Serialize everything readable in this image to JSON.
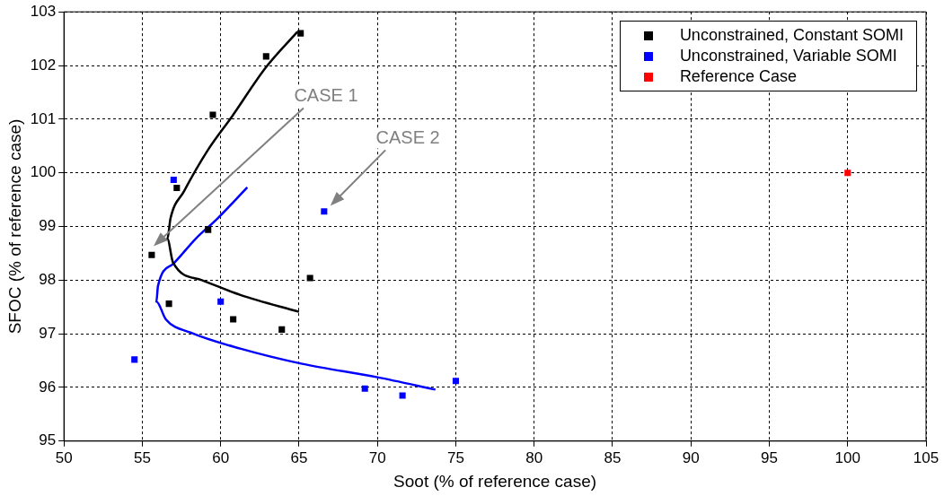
{
  "chart_data": {
    "type": "scatter",
    "xlabel": "Soot (% of reference case)",
    "ylabel": "SFOC (% of reference case)",
    "xlim": [
      50,
      105
    ],
    "xticks": [
      50,
      55,
      60,
      65,
      70,
      75,
      80,
      85,
      90,
      95,
      100,
      105
    ],
    "ylim": [
      95,
      103
    ],
    "yticks": [
      95,
      96,
      97,
      98,
      99,
      100,
      101,
      102,
      103
    ],
    "grid": true,
    "legend": "top right",
    "marker": "square",
    "series": [
      {
        "name": "Unconstrained, Constant SOMI",
        "color": "#000000",
        "x": [
          65.1,
          62.9,
          59.5,
          57.2,
          59.2,
          55.6,
          65.7,
          56.7,
          60.8,
          63.9
        ],
        "values": [
          102.6,
          102.17,
          101.08,
          99.72,
          98.94,
          98.47,
          98.04,
          97.56,
          97.27,
          97.08
        ]
      },
      {
        "name": "Unconstrained, Variable SOMI",
        "color": "#0000ff",
        "x": [
          57.0,
          66.6,
          60.0,
          54.5,
          69.2,
          71.6,
          75.0
        ],
        "values": [
          99.87,
          99.28,
          97.6,
          96.52,
          95.98,
          95.85,
          96.12
        ]
      },
      {
        "name": "Reference Case",
        "color": "#ff0000",
        "x": [
          100
        ],
        "values": [
          100
        ]
      },
      {
        "type": "line",
        "marker": "none",
        "color": "#000000",
        "x": [
          64.9,
          62.9,
          60.7,
          59.2,
          57.65,
          56.8,
          56.6,
          56.96,
          58.8,
          61.3,
          65.0
        ],
        "values": [
          102.63,
          101.97,
          101.04,
          100.43,
          99.65,
          99.15,
          98.77,
          98.33,
          98.0,
          97.72,
          97.41
        ]
      },
      {
        "type": "line",
        "marker": "none",
        "color": "#0000ff",
        "x": [
          61.7,
          59.8,
          58.4,
          56.96,
          56.0,
          55.9,
          56.5,
          58.1,
          61.3,
          65.2,
          70.0,
          73.7
        ],
        "values": [
          99.73,
          99.15,
          98.77,
          98.3,
          97.89,
          97.6,
          97.27,
          97.02,
          96.72,
          96.44,
          96.19,
          95.96
        ]
      }
    ],
    "annotations": [
      "CASE 1",
      "CASE 2"
    ]
  }
}
